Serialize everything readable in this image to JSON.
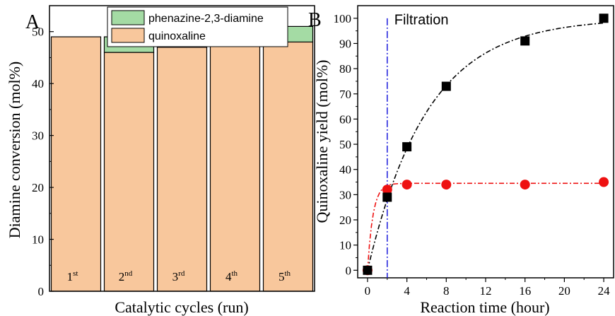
{
  "chart_data": [
    {
      "type": "bar",
      "panel_label": "A",
      "xlabel": "Catalytic cycles (run)",
      "ylabel": "Diamine conversion (mol%)",
      "ylim": [
        0,
        55
      ],
      "yticks": [
        0,
        10,
        20,
        30,
        40,
        50
      ],
      "stacked": true,
      "grid": false,
      "legend_position": "top-center",
      "categories": [
        {
          "base": "1",
          "sup": "st"
        },
        {
          "base": "2",
          "sup": "nd"
        },
        {
          "base": "3",
          "sup": "rd"
        },
        {
          "base": "4",
          "sup": "th"
        },
        {
          "base": "5",
          "sup": "th"
        }
      ],
      "series": [
        {
          "name": "quinoxaline",
          "color": "#f8c79c",
          "values": [
            49,
            46,
            47,
            50,
            48
          ]
        },
        {
          "name": "phenazine-2,3-diamine",
          "color": "#a4dba4",
          "values": [
            0,
            3,
            2,
            1,
            3
          ]
        }
      ]
    },
    {
      "type": "scatter",
      "panel_label": "B",
      "xlabel": "Reaction time (hour)",
      "ylabel": "Quinoxaline yield (mol%)",
      "xlim": [
        -1,
        25
      ],
      "ylim": [
        -3,
        105
      ],
      "xticks": [
        0,
        4,
        8,
        12,
        16,
        20,
        24
      ],
      "yticks": [
        0,
        10,
        20,
        30,
        40,
        50,
        60,
        70,
        80,
        90,
        100
      ],
      "grid": false,
      "annotation": {
        "text": "Filtration",
        "x": 2,
        "color": "#1a1adc"
      },
      "series": [
        {
          "marker": "square",
          "color": "#000000",
          "x": [
            0,
            2,
            4,
            8,
            16,
            24
          ],
          "y": [
            0,
            29,
            49,
            73,
            91,
            100
          ]
        },
        {
          "marker": "circle",
          "color": "#ee1111",
          "x": [
            0,
            2,
            4,
            8,
            16,
            24
          ],
          "y": [
            0,
            32,
            34,
            34,
            34,
            35
          ]
        }
      ]
    }
  ]
}
